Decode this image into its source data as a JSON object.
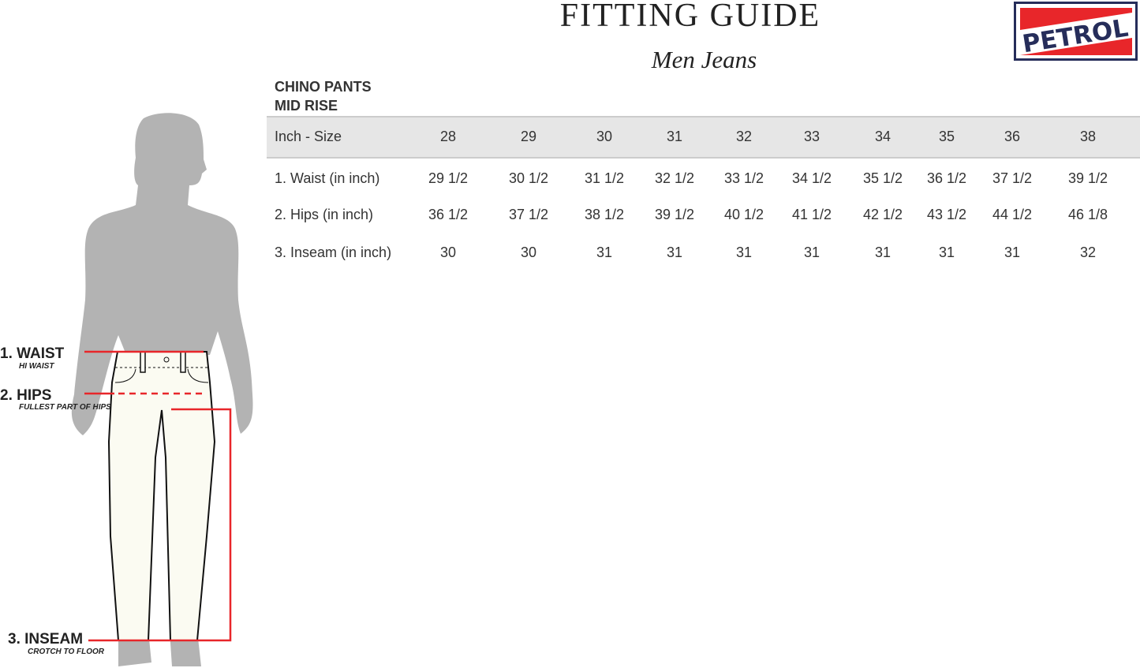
{
  "header": {
    "title": "FITTING GUIDE",
    "subtitle": "Men Jeans",
    "brand": "PETROL"
  },
  "product": {
    "line1": "CHINO PANTS",
    "line2": "MID RISE"
  },
  "table": {
    "header_label": "Inch - Size",
    "sizes": [
      "28",
      "29",
      "30",
      "31",
      "32",
      "33",
      "34",
      "35",
      "36",
      "38"
    ],
    "rows": [
      {
        "label": "1. Waist (in inch)",
        "values": [
          "29 1/2",
          "30 1/2",
          "31 1/2",
          "32 1/2",
          "33 1/2",
          "34 1/2",
          "35 1/2",
          "36 1/2",
          "37 1/2",
          "39 1/2"
        ]
      },
      {
        "label": "2. Hips (in inch)",
        "values": [
          "36 1/2",
          "37 1/2",
          "38 1/2",
          "39 1/2",
          "40 1/2",
          "41 1/2",
          "42 1/2",
          "43 1/2",
          "44 1/2",
          "46 1/8"
        ]
      },
      {
        "label": "3. Inseam (in inch)",
        "values": [
          "30",
          "30",
          "31",
          "31",
          "31",
          "31",
          "31",
          "31",
          "31",
          "32"
        ]
      }
    ]
  },
  "measurements": {
    "waist": {
      "label": "1. WAIST",
      "note": "HI WAIST"
    },
    "hips": {
      "label": "2. HIPS",
      "note": "FULLEST PART OF HIPS"
    },
    "inseam": {
      "label": "3. INSEAM",
      "note": "CROTCH TO FLOOR"
    }
  },
  "colors": {
    "accent": "#e8262a",
    "brand_navy": "#262d5a",
    "silhouette": "#b3b3b3",
    "band": "#e6e6e6"
  }
}
